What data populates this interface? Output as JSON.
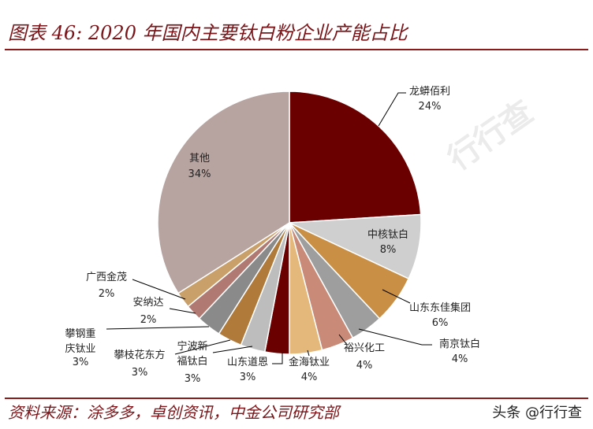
{
  "header": {
    "title": "图表 46: 2020 年国内主要钛白粉企业产能占比"
  },
  "footer": {
    "source": "资料来源：涂多多，卓创资讯，中金公司研究部",
    "credit": "头条 @行行查"
  },
  "chart_data": {
    "type": "pie",
    "slices": [
      {
        "label": "龙蟒佰利",
        "value": 24,
        "display": "24%",
        "color": "#6b0000"
      },
      {
        "label": "中核钛白",
        "value": 8,
        "display": "8%",
        "color": "#cfcfcf"
      },
      {
        "label": "山东东佳集团",
        "value": 6,
        "display": "6%",
        "color": "#c98f45"
      },
      {
        "label": "南京钛白",
        "value": 4,
        "display": "4%",
        "color": "#9e9e9e"
      },
      {
        "label": "裕兴化工",
        "value": 4,
        "display": "4%",
        "color": "#c98a78"
      },
      {
        "label": "金海钛业",
        "value": 4,
        "display": "4%",
        "color": "#e3b87a"
      },
      {
        "label": "山东道恩",
        "value": 3,
        "display": "3%",
        "color": "#6b0000"
      },
      {
        "label": "宁波新福钛白",
        "value": 3,
        "display": "3%",
        "color": "#bdbdbd"
      },
      {
        "label": "攀枝花东方",
        "value": 3,
        "display": "3%",
        "color": "#b07a3a"
      },
      {
        "label": "攀钢重庆钛业",
        "value": 3,
        "display": "3%",
        "color": "#8a8a8a"
      },
      {
        "label": "安纳达",
        "value": 2,
        "display": "2%",
        "color": "#b07a72"
      },
      {
        "label": "广西金茂",
        "value": 2,
        "display": "2%",
        "color": "#c9a06a"
      },
      {
        "label": "其他",
        "value": 34,
        "display": "34%",
        "color": "#b7a3a0"
      }
    ]
  }
}
